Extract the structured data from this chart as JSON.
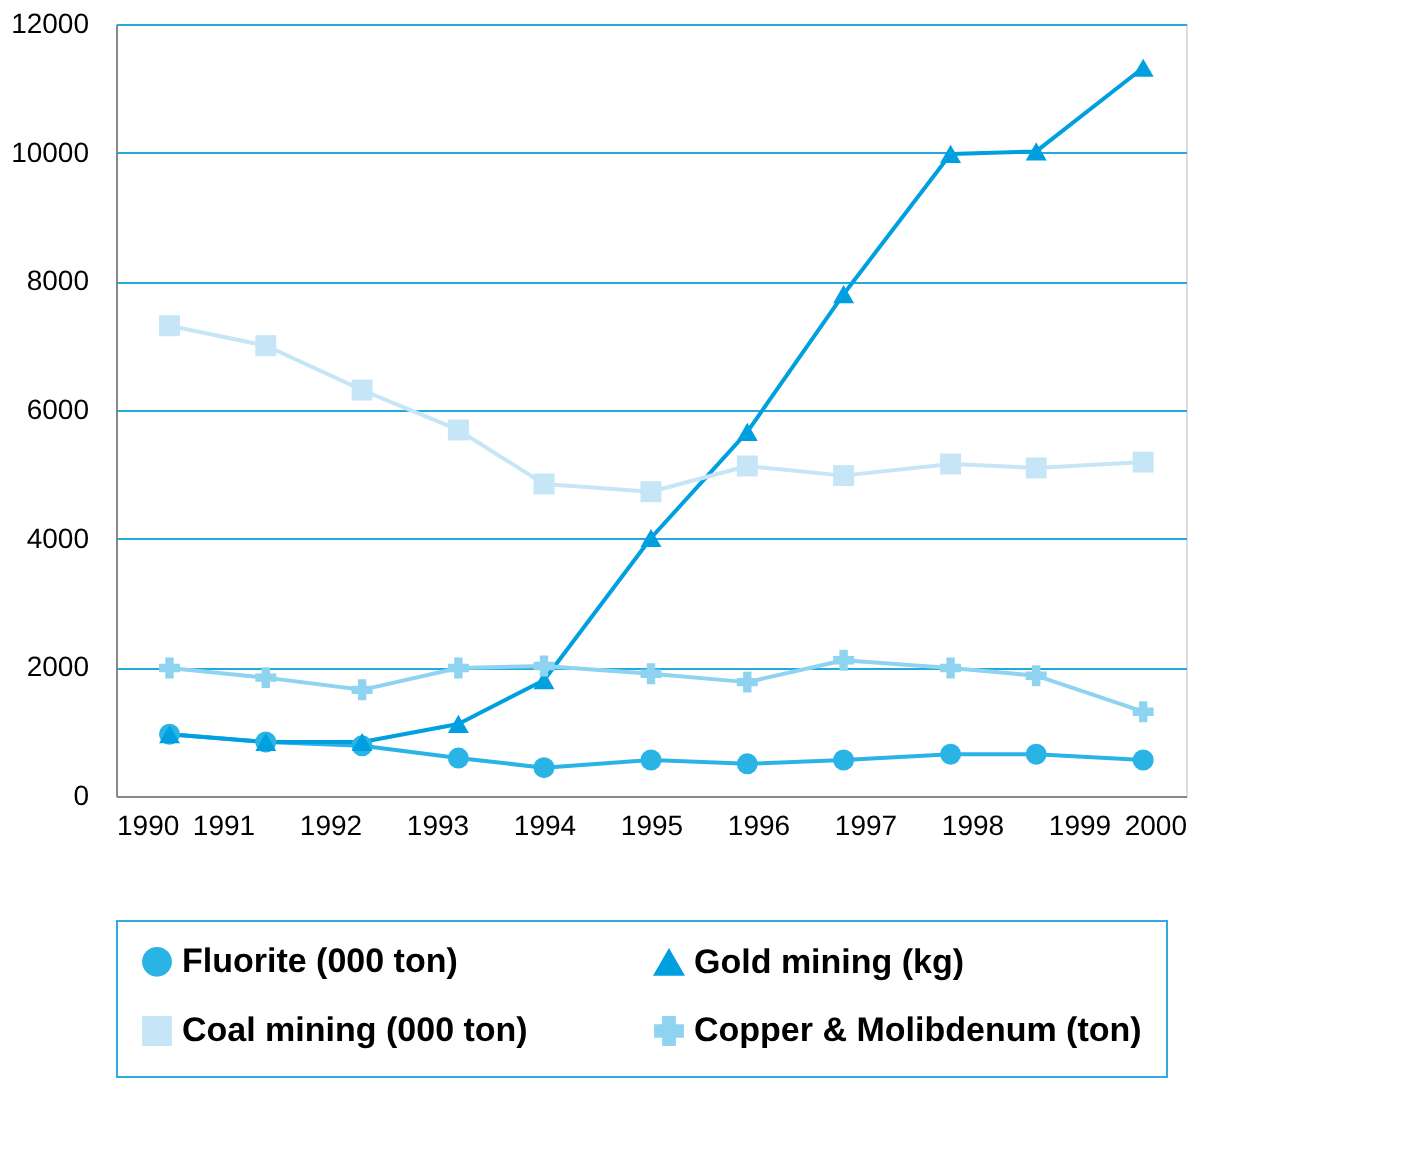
{
  "chart_data": {
    "type": "line",
    "xlim": [
      1990,
      2000
    ],
    "xticks": [
      1990,
      1991,
      1992,
      1993,
      1994,
      1995,
      1996,
      1997,
      1998,
      1999,
      2000
    ],
    "ylim": [
      0,
      12000
    ],
    "yticks": [
      0,
      2000,
      4000,
      6000,
      8000,
      10000,
      12000
    ],
    "grid": "y",
    "legend": "bottom",
    "x": [
      1990.5,
      1991.4,
      1992.3,
      1993.2,
      1994.0,
      1995.0,
      1995.9,
      1996.8,
      1997.8,
      1998.6,
      1999.6
    ],
    "series": [
      {
        "name": "Fluorite (000 ton)",
        "color": "#2ab4e6",
        "marker": "circle",
        "values": [
          960,
          840,
          780,
          590,
          440,
          560,
          500,
          560,
          650,
          650,
          560
        ]
      },
      {
        "name": "Gold mining (kg)",
        "color": "#00a0e0",
        "marker": "triangle",
        "values": [
          960,
          840,
          840,
          1120,
          1800,
          4010,
          5660,
          7800,
          9980,
          10020,
          11320
        ]
      },
      {
        "name": "Coal mining (000 ton)",
        "color": "#c6e6f7",
        "marker": "square",
        "values": [
          7310,
          7000,
          6310,
          5690,
          4850,
          4730,
          5130,
          4980,
          5160,
          5100,
          5190
        ]
      },
      {
        "name": "Copper & Molibdenum (ton)",
        "color": "#8ed4f0",
        "marker": "cross",
        "values": [
          1990,
          1840,
          1650,
          1990,
          2020,
          1900,
          1770,
          2110,
          1990,
          1870,
          1310
        ]
      }
    ]
  }
}
